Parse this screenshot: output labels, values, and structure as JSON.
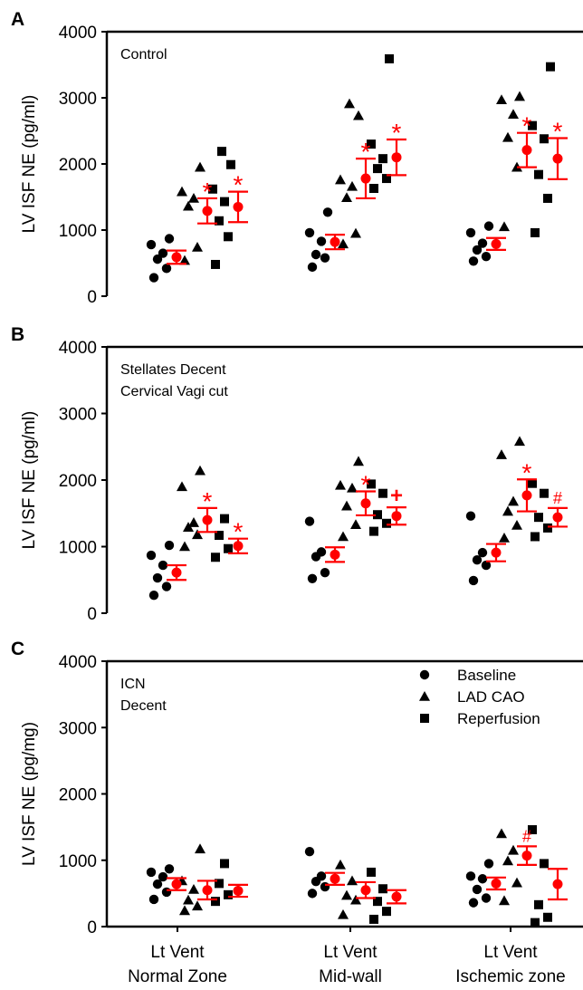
{
  "chart_data": [
    {
      "type": "scatter",
      "panel_letter": "A",
      "annotation": [
        "Control"
      ],
      "ylabel": "LV ISF NE (pg/ml)",
      "ylim": [
        0,
        4000
      ],
      "yticks": [
        "0",
        "1000",
        "2000",
        "3000",
        "4000"
      ],
      "categories": [
        "Lt Vent Normal Zone",
        "Lt Vent Mid-wall",
        "Lt Vent Ischemic zone"
      ],
      "series": [
        {
          "name": "Baseline",
          "marker": "circle",
          "values": [
            [
              280,
              420,
              560,
              650,
              780,
              870
            ],
            [
              440,
              580,
              630,
              830,
              960,
              1270
            ],
            [
              530,
              600,
              700,
              800,
              960,
              1060
            ]
          ]
        },
        {
          "name": "LAD CAO",
          "marker": "triangle",
          "values": [
            [
              540,
              740,
              1360,
              1480,
              1580,
              1950
            ],
            [
              790,
              950,
              1490,
              1660,
              1760,
              2730,
              2910
            ],
            [
              1050,
              1950,
              2400,
              2750,
              2970,
              3020
            ]
          ]
        },
        {
          "name": "Reperfusion",
          "marker": "square",
          "values": [
            [
              480,
              900,
              1140,
              1430,
              1620,
              1990,
              2190
            ],
            [
              1630,
              1780,
              1930,
              2080,
              2300,
              3590
            ],
            [
              960,
              1480,
              1840,
              2380,
              2580,
              3470
            ]
          ]
        }
      ],
      "summary": [
        [
          {
            "mean": 590,
            "sem": 100
          },
          {
            "mean": 1290,
            "sem": 190,
            "mark": "*"
          },
          {
            "mean": 1350,
            "sem": 230,
            "mark": "*"
          }
        ],
        [
          {
            "mean": 820,
            "sem": 110
          },
          {
            "mean": 1780,
            "sem": 300,
            "mark": "*"
          },
          {
            "mean": 2100,
            "sem": 270,
            "mark": "*"
          }
        ],
        [
          {
            "mean": 790,
            "sem": 90
          },
          {
            "mean": 2210,
            "sem": 260,
            "mark": "*"
          },
          {
            "mean": 2080,
            "sem": 310,
            "mark": "*"
          }
        ]
      ]
    },
    {
      "type": "scatter",
      "panel_letter": "B",
      "annotation": [
        "Stellates Decent",
        "Cervical Vagi cut"
      ],
      "ylabel": "LV ISF NE (pg/ml)",
      "ylim": [
        0,
        4000
      ],
      "yticks": [
        "0",
        "1000",
        "2000",
        "3000",
        "4000"
      ],
      "categories": [
        "Lt Vent Normal Zone",
        "Lt Vent Mid-wall",
        "Lt Vent Ischemic zone"
      ],
      "series": [
        {
          "name": "Baseline",
          "marker": "circle",
          "values": [
            [
              270,
              400,
              530,
              720,
              870,
              1020
            ],
            [
              520,
              610,
              850,
              920,
              1380
            ],
            [
              490,
              720,
              800,
              910,
              1460
            ]
          ]
        },
        {
          "name": "LAD CAO",
          "marker": "triangle",
          "values": [
            [
              1000,
              1180,
              1290,
              1360,
              1900,
              2140
            ],
            [
              1150,
              1330,
              1610,
              1880,
              1920,
              2280
            ],
            [
              1130,
              1320,
              1530,
              1680,
              2380,
              2580
            ]
          ]
        },
        {
          "name": "Reperfusion",
          "marker": "square",
          "values": [
            [
              840,
              970,
              1170,
              1420
            ],
            [
              1230,
              1350,
              1480,
              1800,
              1940
            ],
            [
              1150,
              1280,
              1440,
              1800,
              1950
            ]
          ]
        }
      ],
      "summary": [
        [
          {
            "mean": 610,
            "sem": 110
          },
          {
            "mean": 1400,
            "sem": 180,
            "mark": "*"
          },
          {
            "mean": 1010,
            "sem": 110,
            "mark": "*"
          }
        ],
        [
          {
            "mean": 880,
            "sem": 110
          },
          {
            "mean": 1650,
            "sem": 180,
            "mark": "*"
          },
          {
            "mean": 1460,
            "sem": 130,
            "mark": "+"
          }
        ],
        [
          {
            "mean": 910,
            "sem": 130
          },
          {
            "mean": 1770,
            "sem": 240,
            "mark": "*"
          },
          {
            "mean": 1440,
            "sem": 140,
            "mark": "#"
          }
        ]
      ]
    },
    {
      "type": "scatter",
      "panel_letter": "C",
      "annotation": [
        "ICN",
        "Decent"
      ],
      "ylabel": "LV ISF NE (pg/mg)",
      "ylim": [
        0,
        4000
      ],
      "yticks": [
        "0",
        "1000",
        "2000",
        "3000",
        "4000"
      ],
      "categories": [
        "Lt Vent Normal Zone",
        "Lt Vent Mid-wall",
        "Lt Vent Ischemic zone"
      ],
      "legend": {
        "placement": "top-right",
        "entries": [
          "Baseline",
          "LAD CAO",
          "Reperfusion"
        ]
      },
      "series": [
        {
          "name": "Baseline",
          "marker": "circle",
          "values": [
            [
              410,
              520,
              640,
              750,
              820,
              870
            ],
            [
              500,
              600,
              680,
              760,
              1130
            ],
            [
              360,
              430,
              560,
              720,
              760,
              950
            ]
          ]
        },
        {
          "name": "LAD CAO",
          "marker": "triangle",
          "values": [
            [
              240,
              310,
              400,
              560,
              690,
              1170
            ],
            [
              180,
              400,
              470,
              690,
              930
            ],
            [
              390,
              660,
              990,
              1150,
              1400
            ]
          ]
        },
        {
          "name": "Reperfusion",
          "marker": "square",
          "values": [
            [
              380,
              480,
              650,
              950
            ],
            [
              110,
              230,
              380,
              570,
              820
            ],
            [
              60,
              140,
              330,
              950,
              1460
            ]
          ]
        }
      ],
      "summary": [
        [
          {
            "mean": 640,
            "sem": 90
          },
          {
            "mean": 550,
            "sem": 140
          },
          {
            "mean": 540,
            "sem": 90
          }
        ],
        [
          {
            "mean": 720,
            "sem": 90
          },
          {
            "mean": 550,
            "sem": 120
          },
          {
            "mean": 450,
            "sem": 100
          }
        ],
        [
          {
            "mean": 650,
            "sem": 90
          },
          {
            "mean": 1070,
            "sem": 140,
            "mark": "#"
          },
          {
            "mean": 640,
            "sem": 230
          }
        ]
      ]
    }
  ],
  "x_category_labels": [
    [
      "Lt Vent",
      "Normal Zone"
    ],
    [
      "Lt Vent",
      "Mid-wall"
    ],
    [
      "Lt Vent",
      "Ischemic zone"
    ]
  ],
  "colors": {
    "points": "#000000",
    "summary": "#ff0000",
    "axes": "#000000",
    "background": "#ffffff"
  }
}
